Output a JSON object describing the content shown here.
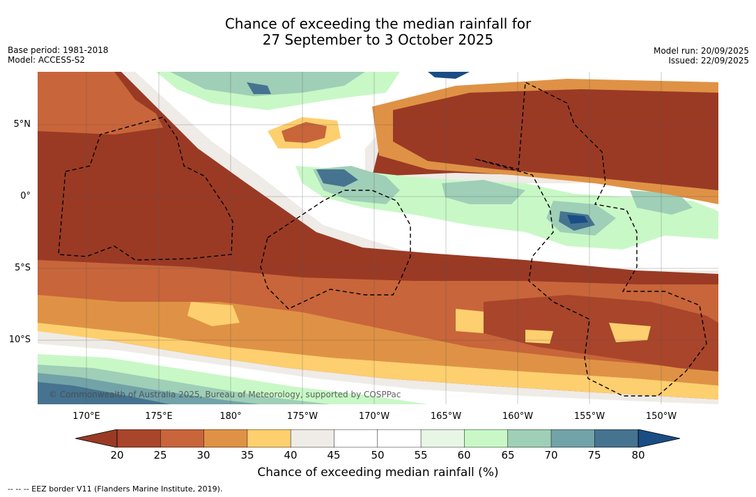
{
  "title": {
    "line1": "Chance of exceeding the median rainfall for",
    "line2": "27 September to 3 October 2025"
  },
  "meta_left": {
    "base_period": "Base period: 1981-2018",
    "model": "Model: ACCESS-S2"
  },
  "meta_right": {
    "model_run": "Model run: 20/09/2025",
    "issued": "Issued: 22/09/2025"
  },
  "axes": {
    "lat_labels": [
      "5°N",
      "0°",
      "5°S",
      "10°S"
    ],
    "lon_labels": [
      "170°E",
      "175°E",
      "180°",
      "175°W",
      "170°W",
      "165°W",
      "160°W",
      "155°W",
      "150°W"
    ]
  },
  "copyright": "© Commonwealth of Australia 2025, Bureau of Meteorology, supported by COSPPac",
  "colorbar": {
    "ticks": [
      "20",
      "25",
      "30",
      "35",
      "40",
      "45",
      "50",
      "55",
      "60",
      "65",
      "70",
      "75",
      "80"
    ],
    "colors": {
      "under": "#9a3a25",
      "c20_25": "#a8452b",
      "c25_30": "#c8653a",
      "c30_35": "#df9245",
      "c35_40": "#fdcf6e",
      "c40_45": "#efebe7",
      "c45_50": "#ffffff",
      "c50_55": "#ffffff",
      "c55_60": "#e8f6e6",
      "c60_65": "#c9f8c7",
      "c65_70": "#9fcfb7",
      "c70_75": "#72a3a8",
      "c75_80": "#46738f",
      "over": "#1a4d84"
    },
    "title": "Chance of exceeding median rainfall (%)"
  },
  "footer": "--  --  -- EEZ border V11 (Flanders Marine Institute, 2019)."
}
